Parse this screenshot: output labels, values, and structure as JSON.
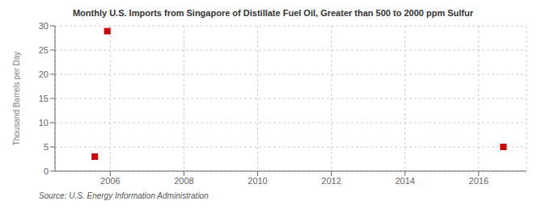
{
  "chart_data": {
    "type": "scatter",
    "title": "Monthly U.S. Imports from Singapore of Distillate Fuel Oil, Greater than 500 to 2000 ppm Sulfur",
    "ylabel": "Thousand Barrels per Day",
    "annotations": [
      "Source: U.S. Energy Information Administration"
    ],
    "x": [
      2005.58,
      2005.92,
      2016.67
    ],
    "values": [
      3.0,
      28.9,
      5.0
    ],
    "color": "#cc0000",
    "marker": "square",
    "xlim": [
      2004.5,
      2017.3
    ],
    "ylim": [
      0,
      30
    ],
    "xticks": [
      2006,
      2008,
      2010,
      2012,
      2014,
      2016
    ],
    "yticks": [
      0,
      5,
      10,
      15,
      20,
      25,
      30
    ],
    "grid": true
  }
}
